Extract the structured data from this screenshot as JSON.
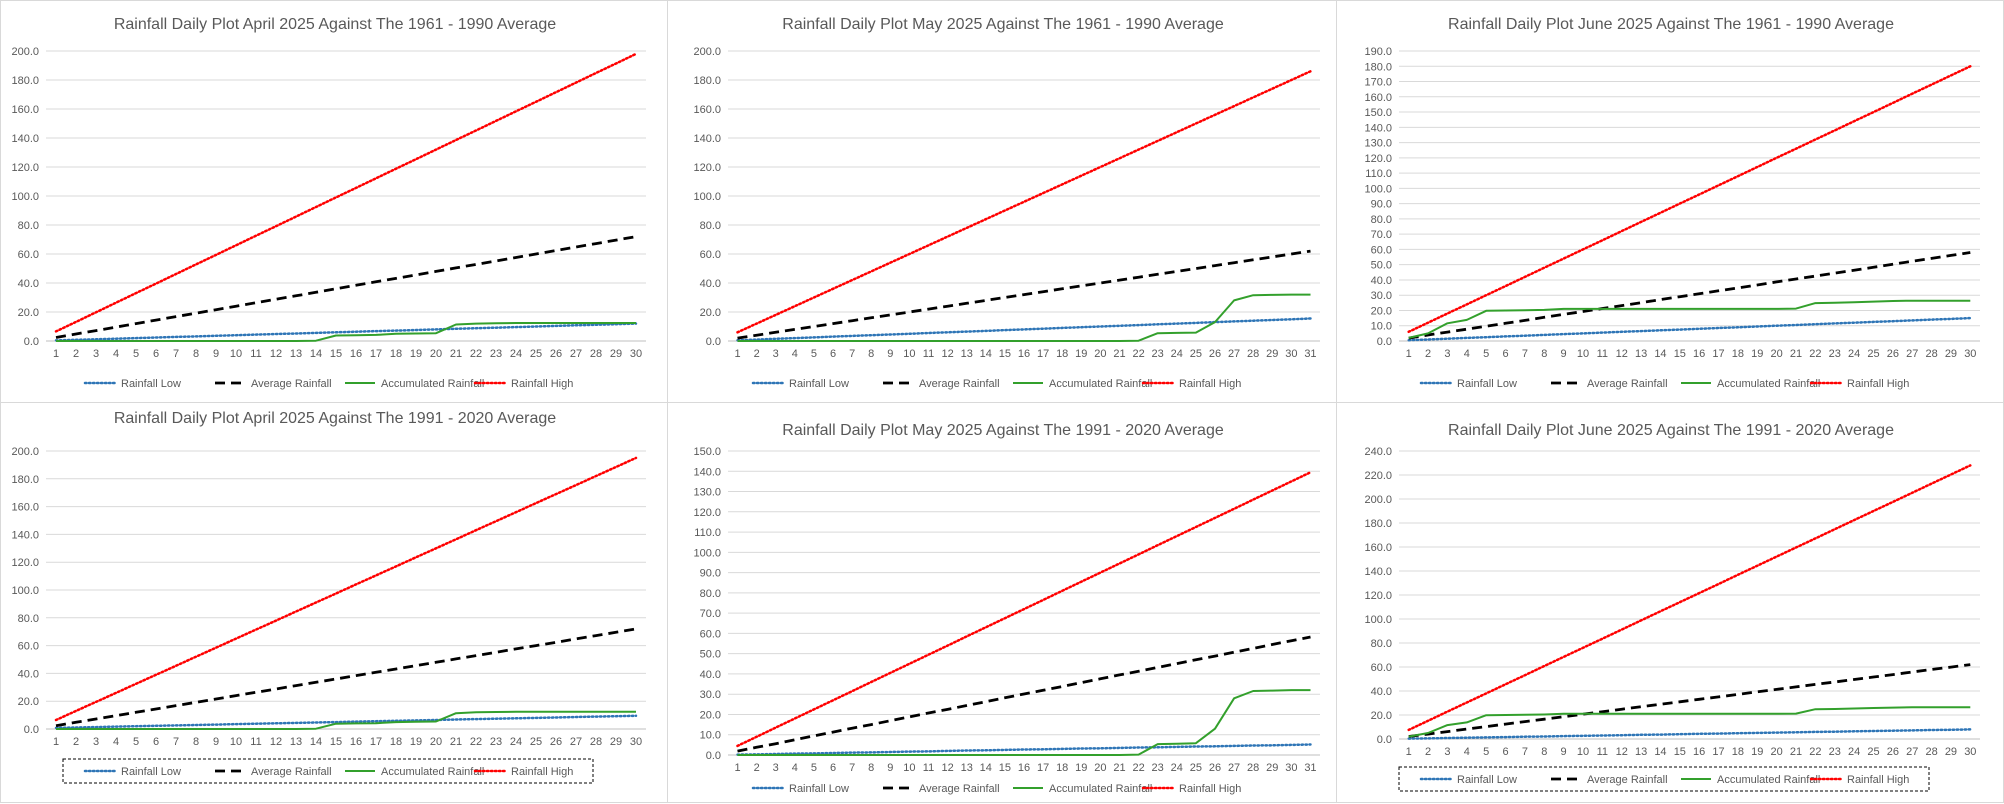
{
  "series_styles": {
    "Rainfall Low": {
      "color": "#2E75B6",
      "dash": "1.5 2.5",
      "width": 2.5
    },
    "Average Rainfall": {
      "color": "#000000",
      "dash": "10 6",
      "width": 2.8
    },
    "Accumulated Rainfall": {
      "color": "#33A02C",
      "dash": "",
      "width": 2
    },
    "Rainfall High": {
      "color": "#FF0000",
      "dash": "1.5 2.5",
      "width": 2.5
    }
  },
  "chart_data": [
    {
      "type": "line",
      "title": "Rainfall Daily Plot April 2025 Against The 1961 - 1990 Average",
      "days": 30,
      "ylim": [
        0,
        200
      ],
      "ystep": 20,
      "legend_box": false,
      "series": [
        {
          "name": "Rainfall Low",
          "values": [
            0.4,
            0.8,
            1.2,
            1.6,
            2.0,
            2.4,
            2.8,
            3.2,
            3.6,
            4.0,
            4.4,
            4.8,
            5.2,
            5.6,
            6.0,
            6.4,
            6.8,
            7.2,
            7.6,
            8.0,
            8.4,
            8.8,
            9.2,
            9.6,
            10.0,
            10.4,
            10.8,
            11.2,
            11.6,
            12.0
          ]
        },
        {
          "name": "Average Rainfall",
          "values": [
            2.4,
            4.8,
            7.2,
            9.6,
            12.0,
            14.4,
            16.8,
            19.2,
            21.6,
            24.0,
            26.4,
            28.8,
            31.2,
            33.6,
            36.0,
            38.4,
            40.8,
            43.2,
            45.6,
            48.0,
            50.4,
            52.8,
            55.2,
            57.6,
            60.0,
            62.4,
            64.8,
            67.2,
            69.6,
            72.0
          ]
        },
        {
          "name": "Accumulated Rainfall",
          "values": [
            0.0,
            0.0,
            0.0,
            0.0,
            0.0,
            0.0,
            0.0,
            0.0,
            0.0,
            0.0,
            0.0,
            0.0,
            0.0,
            0.2,
            3.8,
            4.0,
            4.2,
            5.0,
            5.2,
            5.4,
            11.4,
            12.0,
            12.2,
            12.4,
            12.4,
            12.4,
            12.4,
            12.4,
            12.4,
            12.4
          ]
        },
        {
          "name": "Rainfall High",
          "values": [
            6.6,
            13.2,
            19.8,
            26.4,
            33.0,
            39.6,
            46.2,
            52.8,
            59.4,
            66.0,
            72.6,
            79.2,
            85.8,
            92.4,
            99.0,
            105.6,
            112.2,
            118.8,
            125.4,
            132.0,
            138.6,
            145.2,
            151.8,
            158.4,
            165.0,
            171.6,
            178.2,
            184.8,
            191.4,
            198.0
          ]
        }
      ]
    },
    {
      "type": "line",
      "title": "Rainfall Daily Plot May 2025 Against The 1961 - 1990 Average",
      "days": 31,
      "ylim": [
        0,
        200
      ],
      "ystep": 20,
      "legend_box": false,
      "series": [
        {
          "name": "Rainfall Low",
          "values": [
            0.5,
            1.0,
            1.5,
            2.0,
            2.5,
            3.0,
            3.5,
            4.0,
            4.5,
            5.0,
            5.5,
            6.0,
            6.5,
            7.0,
            7.5,
            8.0,
            8.5,
            9.0,
            9.5,
            10.0,
            10.5,
            11.0,
            11.5,
            12.0,
            12.5,
            13.0,
            13.5,
            14.0,
            14.5,
            15.0,
            15.5
          ]
        },
        {
          "name": "Average Rainfall",
          "values": [
            2.0,
            4.0,
            6.0,
            8.0,
            10.0,
            12.0,
            14.0,
            16.0,
            18.0,
            20.0,
            22.0,
            24.0,
            26.0,
            28.0,
            30.0,
            32.0,
            34.0,
            36.0,
            38.0,
            40.0,
            42.0,
            44.0,
            46.0,
            48.0,
            50.0,
            52.0,
            54.0,
            56.0,
            58.0,
            60.0,
            62.0
          ]
        },
        {
          "name": "Accumulated Rainfall",
          "values": [
            0.0,
            0.0,
            0.0,
            0.0,
            0.0,
            0.0,
            0.0,
            0.0,
            0.0,
            0.0,
            0.0,
            0.0,
            0.0,
            0.0,
            0.0,
            0.0,
            0.0,
            0.0,
            0.0,
            0.0,
            0.0,
            0.2,
            5.4,
            5.6,
            5.8,
            13.0,
            28.0,
            31.6,
            31.8,
            32.0,
            32.0
          ]
        },
        {
          "name": "Rainfall High",
          "values": [
            6.0,
            12.0,
            18.0,
            24.0,
            30.0,
            36.0,
            42.0,
            48.0,
            54.0,
            60.0,
            66.0,
            72.0,
            78.0,
            84.0,
            90.0,
            96.0,
            102.0,
            108.0,
            114.0,
            120.0,
            126.0,
            132.0,
            138.0,
            144.0,
            150.0,
            156.0,
            162.0,
            168.0,
            174.0,
            180.0,
            186.0
          ]
        }
      ]
    },
    {
      "type": "line",
      "title": "Rainfall Daily Plot June 2025 Against The 1961 - 1990 Average",
      "days": 30,
      "ylim": [
        0,
        190
      ],
      "ystep": 10,
      "legend_box": false,
      "series": [
        {
          "name": "Rainfall Low",
          "values": [
            0.5,
            1.0,
            1.5,
            2.0,
            2.5,
            3.0,
            3.5,
            4.0,
            4.5,
            5.0,
            5.5,
            6.0,
            6.5,
            7.0,
            7.5,
            8.0,
            8.5,
            9.0,
            9.5,
            10.0,
            10.5,
            11.0,
            11.5,
            12.0,
            12.5,
            13.0,
            13.5,
            14.0,
            14.5,
            15.0
          ]
        },
        {
          "name": "Average Rainfall",
          "values": [
            1.9,
            3.9,
            5.8,
            7.7,
            9.7,
            11.6,
            13.5,
            15.5,
            17.4,
            19.3,
            21.3,
            23.2,
            25.1,
            27.1,
            29.0,
            30.9,
            32.9,
            34.8,
            36.7,
            38.7,
            40.6,
            42.5,
            44.5,
            46.4,
            48.3,
            50.3,
            52.2,
            54.1,
            56.1,
            58.0
          ]
        },
        {
          "name": "Accumulated Rainfall",
          "values": [
            2.0,
            5.0,
            11.6,
            13.8,
            19.8,
            20.0,
            20.2,
            20.4,
            21.0,
            21.0,
            21.0,
            21.0,
            21.0,
            21.0,
            21.0,
            21.0,
            21.0,
            21.0,
            21.0,
            21.0,
            21.2,
            24.8,
            25.0,
            25.4,
            25.8,
            26.2,
            26.4,
            26.4,
            26.4,
            26.4
          ]
        },
        {
          "name": "Rainfall High",
          "values": [
            6.0,
            12.0,
            18.0,
            24.0,
            30.0,
            36.0,
            42.0,
            48.0,
            54.0,
            60.0,
            66.0,
            72.0,
            78.0,
            84.0,
            90.0,
            96.0,
            102.0,
            108.0,
            114.0,
            120.0,
            126.0,
            132.0,
            138.0,
            144.0,
            150.0,
            156.0,
            162.0,
            168.0,
            174.0,
            180.0
          ]
        }
      ]
    },
    {
      "type": "line",
      "title": "Rainfall Daily Plot April 2025 Against The 1991 - 2020 Average",
      "days": 30,
      "ylim": [
        0,
        200
      ],
      "ystep": 20,
      "legend_box": true,
      "series": [
        {
          "name": "Rainfall Low",
          "values": [
            0.8,
            1.1,
            1.4,
            1.7,
            2.0,
            2.3,
            2.6,
            2.9,
            3.2,
            3.5,
            3.8,
            4.1,
            4.4,
            4.7,
            5.0,
            5.3,
            5.6,
            5.9,
            6.2,
            6.5,
            6.8,
            7.1,
            7.4,
            7.7,
            8.0,
            8.3,
            8.6,
            8.9,
            9.2,
            9.5
          ]
        },
        {
          "name": "Average Rainfall",
          "values": [
            2.4,
            4.8,
            7.2,
            9.6,
            12.0,
            14.4,
            16.8,
            19.2,
            21.6,
            24.0,
            26.4,
            28.8,
            31.2,
            33.6,
            36.0,
            38.4,
            40.8,
            43.2,
            45.6,
            48.0,
            50.4,
            52.8,
            55.2,
            57.6,
            60.0,
            62.4,
            64.8,
            67.2,
            69.6,
            72.0
          ]
        },
        {
          "name": "Accumulated Rainfall",
          "values": [
            0.0,
            0.0,
            0.0,
            0.0,
            0.0,
            0.0,
            0.0,
            0.0,
            0.0,
            0.0,
            0.0,
            0.0,
            0.0,
            0.2,
            3.8,
            4.0,
            4.2,
            5.0,
            5.2,
            5.4,
            11.4,
            12.0,
            12.2,
            12.4,
            12.4,
            12.4,
            12.4,
            12.4,
            12.4,
            12.4
          ]
        },
        {
          "name": "Rainfall High",
          "values": [
            6.5,
            13.0,
            19.5,
            26.0,
            32.5,
            39.0,
            45.5,
            52.0,
            58.5,
            65.0,
            71.5,
            78.0,
            84.5,
            91.0,
            97.5,
            104.0,
            110.5,
            117.0,
            123.5,
            130.0,
            136.5,
            143.0,
            149.5,
            156.0,
            162.5,
            169.0,
            175.5,
            182.0,
            188.5,
            195.0
          ]
        }
      ]
    },
    {
      "type": "line",
      "title": "Rainfall Daily Plot May 2025 Against The 1991 - 2020 Average",
      "days": 31,
      "ylim": [
        0,
        150
      ],
      "ystep": 10,
      "legend_box": false,
      "series": [
        {
          "name": "Rainfall Low",
          "values": [
            0.2,
            0.3,
            0.5,
            0.7,
            0.8,
            1.0,
            1.2,
            1.3,
            1.5,
            1.7,
            1.8,
            2.0,
            2.2,
            2.3,
            2.5,
            2.7,
            2.8,
            3.0,
            3.2,
            3.3,
            3.5,
            3.7,
            3.8,
            4.0,
            4.2,
            4.3,
            4.5,
            4.7,
            4.8,
            5.0,
            5.2
          ]
        },
        {
          "name": "Average Rainfall",
          "values": [
            1.9,
            3.8,
            5.6,
            7.5,
            9.4,
            11.3,
            13.2,
            15.0,
            16.9,
            18.8,
            20.7,
            22.5,
            24.4,
            26.3,
            28.2,
            30.1,
            31.9,
            33.8,
            35.7,
            37.6,
            39.5,
            41.3,
            43.2,
            45.1,
            47.0,
            48.8,
            50.7,
            52.6,
            54.5,
            56.4,
            58.2
          ]
        },
        {
          "name": "Accumulated Rainfall",
          "values": [
            0.0,
            0.0,
            0.0,
            0.0,
            0.0,
            0.0,
            0.0,
            0.0,
            0.0,
            0.0,
            0.0,
            0.0,
            0.0,
            0.0,
            0.0,
            0.0,
            0.0,
            0.0,
            0.0,
            0.0,
            0.0,
            0.2,
            5.4,
            5.6,
            5.8,
            13.0,
            28.0,
            31.6,
            31.8,
            32.0,
            32.0
          ]
        },
        {
          "name": "Rainfall High",
          "values": [
            4.5,
            9.0,
            13.5,
            18.0,
            22.5,
            27.0,
            31.5,
            36.0,
            40.5,
            45.0,
            49.5,
            54.0,
            58.5,
            63.0,
            67.5,
            72.0,
            76.5,
            81.0,
            85.5,
            90.0,
            94.5,
            99.0,
            103.5,
            108.0,
            112.5,
            117.0,
            121.5,
            126.0,
            130.5,
            135.0,
            139.5
          ]
        }
      ]
    },
    {
      "type": "line",
      "title": "Rainfall Daily Plot June 2025 Against The 1991 - 2020 Average",
      "days": 30,
      "ylim": [
        0,
        240
      ],
      "ystep": 20,
      "legend_box": true,
      "series": [
        {
          "name": "Rainfall Low",
          "values": [
            0.3,
            0.5,
            0.8,
            1.1,
            1.3,
            1.6,
            1.9,
            2.1,
            2.4,
            2.7,
            2.9,
            3.2,
            3.5,
            3.7,
            4.0,
            4.3,
            4.5,
            4.8,
            5.1,
            5.3,
            5.6,
            5.9,
            6.1,
            6.4,
            6.7,
            6.9,
            7.2,
            7.5,
            7.7,
            8.0
          ]
        },
        {
          "name": "Average Rainfall",
          "values": [
            2.1,
            4.1,
            6.2,
            8.3,
            10.3,
            12.4,
            14.5,
            16.5,
            18.6,
            20.7,
            22.7,
            24.8,
            26.9,
            28.9,
            31.0,
            33.1,
            35.1,
            37.2,
            39.3,
            41.3,
            43.4,
            45.5,
            47.5,
            49.6,
            51.7,
            53.7,
            55.8,
            57.9,
            59.9,
            62.0
          ]
        },
        {
          "name": "Accumulated Rainfall",
          "values": [
            2.0,
            5.0,
            11.6,
            13.8,
            19.8,
            20.0,
            20.2,
            20.4,
            21.0,
            21.0,
            21.0,
            21.0,
            21.0,
            21.0,
            21.0,
            21.0,
            21.0,
            21.0,
            21.0,
            21.0,
            21.2,
            24.8,
            25.0,
            25.4,
            25.8,
            26.2,
            26.4,
            26.4,
            26.4,
            26.4
          ]
        },
        {
          "name": "Rainfall High",
          "values": [
            7.6,
            15.2,
            22.8,
            30.4,
            38.0,
            45.6,
            53.2,
            60.8,
            68.4,
            76.0,
            83.6,
            91.2,
            98.8,
            106.4,
            114.0,
            121.6,
            129.2,
            136.8,
            144.4,
            152.0,
            159.6,
            167.2,
            174.8,
            182.4,
            190.0,
            197.6,
            205.2,
            212.8,
            220.4,
            228.0
          ]
        }
      ]
    }
  ]
}
